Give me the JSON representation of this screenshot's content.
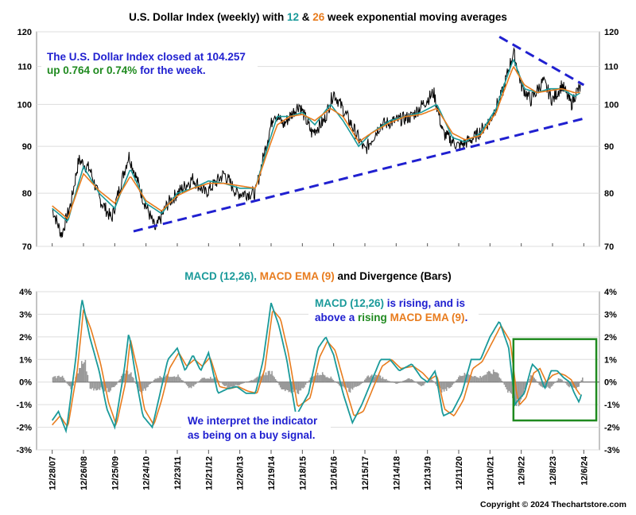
{
  "title": {
    "prefix": "U.S. Dollar Index (weekly) with ",
    "n1": "12",
    "mid": " & ",
    "n2": "26",
    "suffix": " week exponential moving averages"
  },
  "subtitle": {
    "p1": "MACD (12,26), ",
    "p2": "MACD EMA (9)",
    "p3": " and Divergence (Bars)"
  },
  "annotation_price": {
    "line1": "The U.S. Dollar Index closed at 104.257",
    "line2_green": "up 0.764 or 0.74%",
    "line2_blue": " for the week."
  },
  "annotation_macd": {
    "a": "MACD (12,26)",
    "b": " is rising, and is",
    "c": "above a ",
    "d": "rising",
    "e": " ",
    "f": "MACD EMA (9)",
    "g": "."
  },
  "annotation_signal": {
    "line1": "We interpret the indicator",
    "line2": "as being on a buy signal."
  },
  "copyright": "Copyright © 2024 Thechartstore.com",
  "colors": {
    "price": "#000000",
    "ema12": "#1a9a9a",
    "ema26": "#e87c1e",
    "trendline": "#2020d0",
    "divergence": "#999999",
    "highlight_box": "#1f8a1f",
    "text_green": "#1f8a1f",
    "text_blue": "#2020d0",
    "text_teal": "#1a9a9a",
    "text_orange": "#e87c1e"
  },
  "chart_data": [
    {
      "type": "line",
      "panel": "price",
      "y_ticks": [
        70,
        80,
        90,
        100,
        110,
        120
      ],
      "y_tick_labels": [
        "70",
        "80",
        "90",
        "100",
        "110",
        "120"
      ],
      "ylim": [
        70,
        120
      ],
      "x_ticks": [
        "12/28/07",
        "12/26/08",
        "12/25/09",
        "12/24/10",
        "12/23/11",
        "12/21/12",
        "12/20/13",
        "12/19/14",
        "12/18/15",
        "12/16/16",
        "12/15/17",
        "12/14/18",
        "12/13/19",
        "12/11/20",
        "12/10/21",
        "12/9/22",
        "12/8/23",
        "12/6/24"
      ],
      "xlim_years": [
        2007.5,
        2025.5
      ],
      "series": [
        {
          "name": "U.S. Dollar Index",
          "x": [
            2008.0,
            2008.3,
            2008.6,
            2008.85,
            2009.2,
            2009.5,
            2009.9,
            2010.45,
            2010.9,
            2011.3,
            2011.7,
            2012.0,
            2012.5,
            2012.9,
            2013.5,
            2013.9,
            2014.5,
            2015.1,
            2015.4,
            2015.9,
            2016.3,
            2016.7,
            2017.0,
            2017.5,
            2018.0,
            2018.5,
            2019.0,
            2019.5,
            2020.2,
            2020.5,
            2021.0,
            2021.5,
            2022.0,
            2022.4,
            2022.75,
            2023.0,
            2023.3,
            2023.7,
            2024.0,
            2024.3,
            2024.6,
            2024.75,
            2024.9
          ],
          "values": [
            77,
            72,
            78,
            87,
            85,
            79,
            75,
            88,
            79,
            73,
            78,
            80,
            83,
            80,
            84,
            80,
            80,
            98,
            95,
            100,
            93,
            96,
            103,
            96,
            89,
            95,
            96,
            97,
            103,
            93,
            90,
            92,
            96,
            103,
            114,
            105,
            101,
            106,
            101,
            105,
            100,
            103,
            104.3
          ]
        },
        {
          "name": "12 week EMA",
          "x": [
            2008.0,
            2008.5,
            2009.0,
            2009.5,
            2010.0,
            2010.5,
            2011.0,
            2011.5,
            2012.0,
            2012.5,
            2013.0,
            2013.5,
            2014.0,
            2014.5,
            2015.2,
            2015.6,
            2016.0,
            2016.4,
            2016.9,
            2017.3,
            2017.8,
            2018.2,
            2018.8,
            2019.3,
            2019.8,
            2020.3,
            2020.8,
            2021.2,
            2021.7,
            2022.2,
            2022.75,
            2023.1,
            2023.5,
            2023.9,
            2024.3,
            2024.7,
            2024.9
          ],
          "values": [
            77,
            74.5,
            85.5,
            80,
            77,
            85,
            78,
            76,
            80,
            81,
            82.5,
            82,
            81,
            81,
            97,
            97,
            98,
            95,
            100,
            96,
            90,
            93,
            96,
            97,
            98,
            100,
            92,
            91,
            93,
            99,
            112,
            104,
            103,
            104,
            104,
            102,
            103
          ]
        },
        {
          "name": "26 week EMA",
          "x": [
            2008.0,
            2008.5,
            2009.0,
            2009.5,
            2010.0,
            2010.5,
            2011.0,
            2011.5,
            2012.0,
            2012.5,
            2013.0,
            2013.5,
            2014.0,
            2014.5,
            2015.2,
            2015.6,
            2016.0,
            2016.4,
            2016.9,
            2017.3,
            2017.8,
            2018.2,
            2018.8,
            2019.3,
            2019.8,
            2020.3,
            2020.8,
            2021.2,
            2021.7,
            2022.2,
            2022.75,
            2023.1,
            2023.5,
            2023.9,
            2024.3,
            2024.7,
            2024.9
          ],
          "values": [
            77.5,
            75,
            84,
            80.5,
            78,
            83.5,
            78.5,
            76.5,
            79.5,
            81,
            82,
            82,
            81.5,
            81,
            95,
            97,
            97.5,
            96,
            99,
            97,
            91,
            93,
            95.5,
            97,
            97.5,
            99,
            93,
            91.5,
            92.5,
            98,
            110,
            105,
            103,
            103.5,
            104,
            103,
            103
          ]
        }
      ],
      "trendlines": [
        {
          "name": "support",
          "x": [
            2010.6,
            2025.0
          ],
          "values": [
            72.7,
            96.5
          ]
        },
        {
          "name": "resistance",
          "x": [
            2022.3,
            2025.0
          ],
          "values": [
            118.5,
            105
          ]
        }
      ]
    },
    {
      "type": "line",
      "panel": "macd",
      "y_ticks": [
        -3,
        -2,
        -1,
        0,
        1,
        2,
        3,
        4
      ],
      "y_tick_labels": [
        "-3%",
        "-2%",
        "-1%",
        "0%",
        "1%",
        "2%",
        "3%",
        "4%"
      ],
      "ylim": [
        -3,
        4
      ],
      "series": [
        {
          "name": "MACD (12,26)",
          "x": [
            2008.0,
            2008.2,
            2008.45,
            2008.75,
            2008.95,
            2009.2,
            2009.5,
            2009.75,
            2010.0,
            2010.3,
            2010.45,
            2010.7,
            2010.9,
            2011.2,
            2011.45,
            2011.7,
            2012.0,
            2012.25,
            2012.5,
            2012.75,
            2013.0,
            2013.3,
            2013.6,
            2013.9,
            2014.2,
            2014.5,
            2014.75,
            2015.0,
            2015.25,
            2015.5,
            2015.8,
            2016.2,
            2016.5,
            2016.75,
            2017.0,
            2017.3,
            2017.6,
            2017.9,
            2018.2,
            2018.5,
            2018.8,
            2019.1,
            2019.5,
            2019.8,
            2020.0,
            2020.25,
            2020.5,
            2020.8,
            2021.1,
            2021.4,
            2021.7,
            2022.0,
            2022.3,
            2022.6,
            2022.8,
            2022.9,
            2023.1,
            2023.35,
            2023.55,
            2023.75,
            2023.95,
            2024.15,
            2024.35,
            2024.55,
            2024.7,
            2024.85,
            2024.95
          ],
          "values": [
            -1.7,
            -1.3,
            -2.2,
            1.0,
            3.7,
            2.0,
            0.5,
            -1.2,
            -2.0,
            0.5,
            2.2,
            0.0,
            -1.5,
            -2.0,
            -0.5,
            1.0,
            1.5,
            0.5,
            1.2,
            0.5,
            1.3,
            -0.5,
            -0.3,
            -0.2,
            -0.5,
            -0.5,
            1.0,
            3.5,
            2.5,
            1.0,
            -1.5,
            -0.5,
            1.5,
            2.0,
            1.2,
            -0.5,
            -1.8,
            -1.0,
            0.0,
            1.0,
            1.0,
            0.5,
            0.8,
            0.2,
            0.0,
            0.5,
            -1.5,
            -1.3,
            -0.5,
            1.0,
            1.0,
            2.0,
            2.7,
            1.5,
            -1.0,
            -0.8,
            -0.5,
            0.8,
            0.5,
            -0.3,
            0.5,
            0.5,
            0.2,
            0.0,
            -0.5,
            -0.9,
            -0.4
          ]
        },
        {
          "name": "MACD EMA (9)",
          "x": [
            2008.0,
            2008.25,
            2008.5,
            2008.8,
            2009.0,
            2009.25,
            2009.55,
            2009.8,
            2010.05,
            2010.35,
            2010.5,
            2010.75,
            2010.95,
            2011.25,
            2011.5,
            2011.75,
            2012.05,
            2012.3,
            2012.55,
            2012.8,
            2013.05,
            2013.35,
            2013.65,
            2013.95,
            2014.25,
            2014.55,
            2014.8,
            2015.05,
            2015.3,
            2015.55,
            2015.85,
            2016.25,
            2016.55,
            2016.8,
            2017.05,
            2017.35,
            2017.65,
            2017.95,
            2018.25,
            2018.55,
            2018.85,
            2019.15,
            2019.55,
            2019.85,
            2020.05,
            2020.3,
            2020.55,
            2020.85,
            2021.15,
            2021.45,
            2021.75,
            2022.05,
            2022.35,
            2022.65,
            2022.85,
            2022.95,
            2023.15,
            2023.4,
            2023.6,
            2023.8,
            2024.0,
            2024.2,
            2024.4,
            2024.6,
            2024.75,
            2024.9
          ],
          "values": [
            -1.9,
            -1.5,
            -2.0,
            0.5,
            3.2,
            2.3,
            0.8,
            -0.9,
            -1.9,
            0.0,
            1.9,
            0.4,
            -1.2,
            -1.9,
            -0.8,
            0.6,
            1.3,
            0.7,
            1.0,
            0.7,
            1.1,
            -0.2,
            -0.3,
            -0.2,
            -0.4,
            -0.5,
            0.6,
            3.2,
            2.8,
            1.3,
            -1.1,
            -0.7,
            1.1,
            1.8,
            1.4,
            -0.1,
            -1.5,
            -1.3,
            -0.3,
            0.7,
            1.0,
            0.6,
            0.7,
            0.4,
            0.1,
            0.3,
            -1.2,
            -1.5,
            -0.8,
            0.6,
            0.9,
            1.7,
            2.5,
            1.8,
            -0.5,
            -1.0,
            -0.7,
            0.4,
            0.6,
            0.0,
            0.3,
            0.4,
            0.3,
            0.1,
            -0.3,
            -0.6
          ]
        },
        {
          "name": "Divergence",
          "type": "bar",
          "x": [
            2008.0,
            2008.3,
            2008.6,
            2008.8,
            2009.0,
            2009.2,
            2009.5,
            2009.8,
            2010.0,
            2010.3,
            2010.5,
            2010.8,
            2011.0,
            2011.3,
            2011.6,
            2012.0,
            2012.4,
            2012.8,
            2013.2,
            2013.6,
            2014.0,
            2014.4,
            2014.8,
            2015.0,
            2015.3,
            2015.6,
            2015.9,
            2016.3,
            2016.6,
            2016.9,
            2017.2,
            2017.5,
            2017.8,
            2018.1,
            2018.4,
            2018.7,
            2019.0,
            2019.4,
            2019.8,
            2020.1,
            2020.4,
            2020.7,
            2021.0,
            2021.3,
            2021.6,
            2021.9,
            2022.2,
            2022.5,
            2022.8,
            2023.0,
            2023.3,
            2023.6,
            2023.9,
            2024.2,
            2024.5,
            2024.8,
            2024.95
          ],
          "values": [
            0.2,
            0.3,
            -0.4,
            0.5,
            1.2,
            -0.4,
            -0.3,
            -0.4,
            -0.2,
            0.5,
            0.4,
            -0.5,
            -0.3,
            0.2,
            0.3,
            0.3,
            -0.3,
            0.2,
            0.2,
            -0.3,
            -0.1,
            0.1,
            0.4,
            0.5,
            -0.3,
            -0.4,
            -0.5,
            0.3,
            0.4,
            0.2,
            -0.2,
            -0.4,
            -0.2,
            0.3,
            0.3,
            0.1,
            -0.1,
            0.2,
            -0.2,
            0.2,
            -0.4,
            -0.3,
            0.3,
            0.4,
            0.2,
            0.4,
            0.5,
            -0.3,
            -1.0,
            -0.8,
            0.4,
            -0.2,
            -0.3,
            0.2,
            -0.2,
            -0.3,
            0.3
          ]
        }
      ]
    }
  ]
}
